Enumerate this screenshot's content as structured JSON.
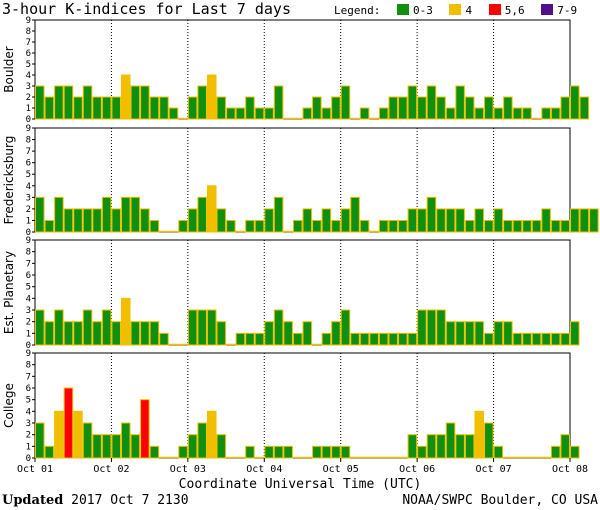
{
  "title": "3-hour K-indices for Last 7 days",
  "legend": {
    "label": "Legend:",
    "items": [
      {
        "label": "0-3",
        "color": "#109010"
      },
      {
        "label": "4",
        "color": "#f0c000"
      },
      {
        "label": "5,6",
        "color": "#ff0000"
      },
      {
        "label": "7-9",
        "color": "#50108a"
      }
    ]
  },
  "footer": {
    "updated_label": "Updated",
    "updated_value": "2017 Oct  7 2130",
    "credit": "NOAA/SWPC Boulder, CO USA"
  },
  "chart_data": {
    "type": "bar",
    "xlabel": "Coordinate Universal Time (UTC)",
    "x_ticks": [
      "Oct 01",
      "Oct 02",
      "Oct 03",
      "Oct 04",
      "Oct 05",
      "Oct 06",
      "Oct 07",
      "Oct 08"
    ],
    "y_ticks": [
      "0",
      "1",
      "2",
      "3",
      "4",
      "5",
      "6",
      "7",
      "8",
      "9"
    ],
    "ylim": [
      0,
      9
    ],
    "bars_per_day": 8,
    "series": [
      {
        "name": "Boulder",
        "values": [
          3,
          2,
          3,
          3,
          2,
          3,
          2,
          2,
          2,
          4,
          3,
          3,
          2,
          2,
          1,
          0,
          2,
          3,
          4,
          2,
          1,
          1,
          2,
          1,
          1,
          3,
          0,
          0,
          1,
          2,
          1,
          2,
          3,
          0,
          1,
          0,
          1,
          2,
          2,
          3,
          2,
          3,
          2,
          1,
          3,
          2,
          1,
          2,
          1,
          2,
          1,
          1,
          0,
          1,
          1,
          2,
          3,
          2,
          0
        ]
      },
      {
        "name": "Fredericksburg",
        "values": [
          3,
          1,
          3,
          2,
          2,
          2,
          2,
          3,
          2,
          3,
          3,
          2,
          1,
          0,
          0,
          1,
          2,
          3,
          4,
          2,
          1,
          0,
          1,
          1,
          2,
          3,
          0,
          1,
          2,
          1,
          2,
          1,
          2,
          3,
          1,
          0,
          1,
          1,
          1,
          2,
          2,
          3,
          2,
          2,
          2,
          1,
          2,
          1,
          2,
          1,
          1,
          1,
          1,
          2,
          1,
          1,
          2,
          2,
          2,
          0
        ]
      },
      {
        "name": "Est. Planetary",
        "values": [
          3,
          2,
          3,
          2,
          2,
          3,
          2,
          3,
          2,
          4,
          2,
          2,
          2,
          1,
          0,
          0,
          3,
          3,
          3,
          2,
          0,
          1,
          1,
          1,
          2,
          3,
          2,
          1,
          2,
          0,
          1,
          2,
          3,
          1,
          1,
          1,
          1,
          1,
          1,
          1,
          3,
          3,
          3,
          2,
          2,
          2,
          2,
          1,
          2,
          2,
          1,
          1,
          1,
          1,
          1,
          1,
          2,
          0,
          0,
          0
        ]
      },
      {
        "name": "College",
        "values": [
          3,
          1,
          4,
          6,
          4,
          3,
          2,
          2,
          2,
          3,
          2,
          5,
          1,
          0,
          0,
          1,
          2,
          3,
          4,
          2,
          0,
          0,
          1,
          0,
          1,
          1,
          1,
          0,
          0,
          1,
          1,
          1,
          1,
          0,
          0,
          0,
          0,
          0,
          0,
          2,
          1,
          2,
          2,
          3,
          2,
          2,
          4,
          3,
          1,
          0,
          0,
          0,
          0,
          0,
          1,
          2,
          1,
          0,
          0,
          0
        ]
      }
    ]
  }
}
